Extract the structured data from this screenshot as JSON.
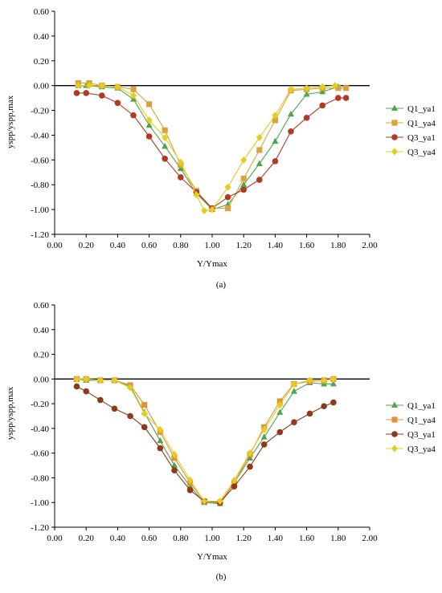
{
  "chart_data": [
    {
      "type": "line",
      "panel_label": "(a)",
      "xlabel": "Y/Ymax",
      "ylabel": "yspp/yspp,max",
      "xlim": [
        0,
        2
      ],
      "ylim": [
        -1.2,
        0.6
      ],
      "x_ticks": [
        "0.00",
        "0.20",
        "0.40",
        "0.60",
        "0.80",
        "1.00",
        "1.20",
        "1.40",
        "1.60",
        "1.80",
        "2.00"
      ],
      "y_ticks": [
        "0.60",
        "0.40",
        "0.20",
        "0.00",
        "-0.20",
        "-0.40",
        "-0.60",
        "-0.80",
        "-1.00",
        "-1.20"
      ],
      "legend_position": "right",
      "series": [
        {
          "name": "Q1_ya1",
          "marker": "triangle",
          "color": "#4ea64e",
          "x": [
            0.15,
            0.2,
            0.3,
            0.4,
            0.5,
            0.6,
            0.7,
            0.8,
            0.9,
            1.0,
            1.1,
            1.2,
            1.3,
            1.4,
            1.5,
            1.6,
            1.7,
            1.8
          ],
          "y": [
            0.0,
            0.0,
            -0.01,
            -0.02,
            -0.11,
            -0.32,
            -0.49,
            -0.67,
            -0.87,
            -1.0,
            -0.96,
            -0.8,
            -0.63,
            -0.45,
            -0.23,
            -0.07,
            -0.05,
            -0.01
          ]
        },
        {
          "name": "Q1_ya4",
          "marker": "square",
          "color": "#d9a440",
          "x": [
            0.15,
            0.22,
            0.3,
            0.4,
            0.5,
            0.6,
            0.7,
            0.8,
            0.9,
            1.0,
            1.1,
            1.2,
            1.3,
            1.4,
            1.5,
            1.6,
            1.7,
            1.8,
            1.85
          ],
          "y": [
            0.02,
            0.02,
            0.0,
            -0.01,
            -0.03,
            -0.15,
            -0.36,
            -0.64,
            -0.85,
            -0.99,
            -0.99,
            -0.75,
            -0.52,
            -0.28,
            -0.04,
            -0.03,
            -0.02,
            -0.02,
            -0.02
          ]
        },
        {
          "name": "Q3_ya1",
          "marker": "circle",
          "color": "#b03a24",
          "x": [
            0.14,
            0.2,
            0.3,
            0.4,
            0.5,
            0.6,
            0.7,
            0.8,
            0.9,
            1.0,
            1.1,
            1.2,
            1.3,
            1.4,
            1.5,
            1.6,
            1.7,
            1.8,
            1.85
          ],
          "y": [
            -0.06,
            -0.06,
            -0.08,
            -0.14,
            -0.24,
            -0.41,
            -0.59,
            -0.74,
            -0.86,
            -0.99,
            -0.9,
            -0.84,
            -0.76,
            -0.61,
            -0.37,
            -0.26,
            -0.16,
            -0.1,
            -0.1
          ]
        },
        {
          "name": "Q3_ya4",
          "marker": "diamond",
          "color": "#e6cc1f",
          "x": [
            0.15,
            0.22,
            0.3,
            0.4,
            0.5,
            0.6,
            0.7,
            0.8,
            0.9,
            0.95,
            1.0,
            1.1,
            1.2,
            1.3,
            1.4,
            1.5,
            1.6,
            1.7,
            1.78
          ],
          "y": [
            0.0,
            0.0,
            0.0,
            -0.01,
            -0.08,
            -0.28,
            -0.42,
            -0.62,
            -0.88,
            -1.01,
            -1.0,
            -0.82,
            -0.6,
            -0.42,
            -0.24,
            -0.03,
            -0.02,
            -0.01,
            0.0
          ]
        }
      ]
    },
    {
      "type": "line",
      "panel_label": "(b)",
      "xlabel": "Y/Ymax",
      "ylabel": "yspp/yspp,max",
      "xlim": [
        0,
        2
      ],
      "ylim": [
        -1.2,
        0.6
      ],
      "x_ticks": [
        "0.00",
        "0.20",
        "0.40",
        "0.60",
        "0.80",
        "1.00",
        "1.20",
        "1.40",
        "1.60",
        "1.80",
        "2.00"
      ],
      "y_ticks": [
        "0.60",
        "0.40",
        "0.20",
        "0.00",
        "-0.20",
        "-0.40",
        "-0.60",
        "-0.80",
        "-1.00",
        "-1.20"
      ],
      "legend_position": "right",
      "series": [
        {
          "name": "Q1_ya1",
          "marker": "triangle",
          "color": "#4ea64e",
          "x": [
            0.14,
            0.2,
            0.29,
            0.38,
            0.48,
            0.57,
            0.67,
            0.76,
            0.86,
            0.95,
            1.05,
            1.14,
            1.24,
            1.33,
            1.43,
            1.52,
            1.62,
            1.71,
            1.77
          ],
          "y": [
            0.0,
            -0.01,
            -0.01,
            -0.01,
            -0.06,
            -0.27,
            -0.5,
            -0.7,
            -0.87,
            -1.0,
            -1.01,
            -0.84,
            -0.64,
            -0.47,
            -0.27,
            -0.1,
            -0.03,
            -0.04,
            -0.04
          ]
        },
        {
          "name": "Q1_ya4",
          "marker": "square",
          "color": "#e2923a",
          "x": [
            0.14,
            0.2,
            0.29,
            0.38,
            0.48,
            0.57,
            0.67,
            0.76,
            0.86,
            0.95,
            1.05,
            1.14,
            1.24,
            1.33,
            1.43,
            1.52,
            1.62,
            1.71,
            1.77
          ],
          "y": [
            0.0,
            0.0,
            -0.01,
            -0.01,
            -0.05,
            -0.21,
            -0.43,
            -0.64,
            -0.84,
            -0.99,
            -1.0,
            -0.84,
            -0.61,
            -0.39,
            -0.18,
            -0.04,
            -0.02,
            -0.01,
            0.0
          ]
        },
        {
          "name": "Q3_ya1",
          "marker": "circle",
          "color": "#8e3a1a",
          "x": [
            0.14,
            0.2,
            0.29,
            0.38,
            0.48,
            0.57,
            0.67,
            0.76,
            0.86,
            0.95,
            1.05,
            1.14,
            1.24,
            1.33,
            1.43,
            1.52,
            1.62,
            1.71,
            1.77
          ],
          "y": [
            -0.06,
            -0.1,
            -0.17,
            -0.24,
            -0.3,
            -0.39,
            -0.56,
            -0.74,
            -0.9,
            -0.99,
            -1.0,
            -0.87,
            -0.71,
            -0.53,
            -0.43,
            -0.35,
            -0.28,
            -0.22,
            -0.19
          ]
        },
        {
          "name": "Q3_ya4",
          "marker": "diamond",
          "color": "#e6cc1f",
          "x": [
            0.14,
            0.2,
            0.29,
            0.38,
            0.48,
            0.57,
            0.67,
            0.76,
            0.86,
            0.95,
            1.05,
            1.14,
            1.24,
            1.33,
            1.43,
            1.52,
            1.62,
            1.71,
            1.77
          ],
          "y": [
            0.0,
            0.0,
            -0.01,
            -0.01,
            -0.07,
            -0.28,
            -0.41,
            -0.61,
            -0.82,
            -0.99,
            -0.99,
            -0.82,
            -0.6,
            -0.41,
            -0.21,
            -0.04,
            -0.01,
            -0.01,
            0.0
          ]
        }
      ]
    }
  ]
}
